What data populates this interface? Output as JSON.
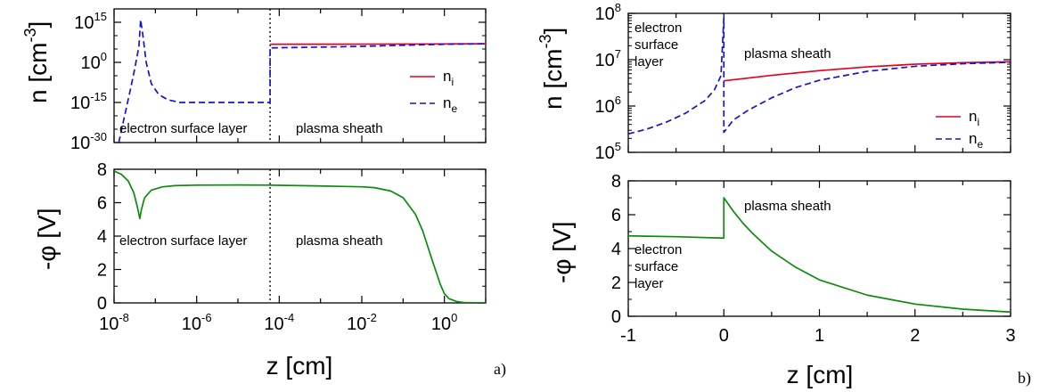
{
  "chart_data": [
    {
      "panel": "a-top",
      "type": "line",
      "xscale": "log",
      "yscale": "log",
      "xlim": [
        1e-08,
        10
      ],
      "ylim": [
        1e-30,
        1e+20
      ],
      "yticks": [
        -30,
        -15,
        0,
        15
      ],
      "ylabel": "n [cm",
      "ylabel_sup": "-3",
      "ylabel_end": "]",
      "legend": {
        "placement": "right",
        "entries": [
          {
            "base": "n",
            "sub": "i",
            "color": "#e8001c",
            "dash": "solid"
          },
          {
            "base": "n",
            "sub": "e",
            "color": "#1414d2",
            "dash": "dashed"
          }
        ]
      },
      "annotations": [
        "electron surface layer",
        "plasma sheath"
      ],
      "divider_x": 6e-05,
      "series": [
        {
          "key": "ni",
          "color": "#e8001c",
          "dash": "solid",
          "x": [
            6e-05,
            0.001,
            0.01,
            0.1,
            1,
            10
          ],
          "y": [
            6000000.0,
            6200000.0,
            6500000.0,
            7000000.0,
            8000000.0,
            9000000.0
          ]
        },
        {
          "key": "ne",
          "color": "#1414d2",
          "dash": "dashed",
          "x": [
            1.3e-08,
            1.8e-08,
            2.5e-08,
            3.2e-08,
            4e-08,
            4.4e-08,
            5e-08,
            6e-08,
            8e-08,
            1.2e-07,
            2e-07,
            4e-07,
            1e-06,
            1e-05,
            6e-05,
            6e-05,
            0.0001,
            0.001,
            0.01,
            0.1,
            1,
            10
          ],
          "y": [
            1e-30,
            1e-20,
            1e-10,
            0.01,
            1000000.0,
            1e+16,
            10000000000.0,
            1.0,
            1e-08,
            1e-12,
            1e-14,
            1e-15,
            1e-15,
            1e-15,
            1e-15,
            250000.0,
            300000.0,
            500000.0,
            1000000.0,
            2500000.0,
            6000000.0,
            9000000.0
          ]
        }
      ]
    },
    {
      "panel": "a-bottom",
      "type": "line",
      "xscale": "log",
      "xlim": [
        1e-08,
        10
      ],
      "ylim": [
        0,
        8
      ],
      "xticks": [
        -8,
        -6,
        -4,
        -2,
        0
      ],
      "yticks": [
        0,
        2,
        4,
        6,
        8
      ],
      "xlabel": "z [cm]",
      "ylabel": "-φ [V]",
      "annotations": [
        "electron surface layer",
        "plasma sheath"
      ],
      "divider_x": 6e-05,
      "series": [
        {
          "key": "phi",
          "color": "#0c8c0c",
          "dash": "solid",
          "x": [
            1e-08,
            1.5e-08,
            2.2e-08,
            3e-08,
            3.7e-08,
            4.2e-08,
            4.6e-08,
            5.5e-08,
            8e-08,
            1.5e-07,
            3e-07,
            1e-06,
            1e-05,
            6e-05,
            0.0001,
            0.001,
            0.01,
            0.02,
            0.05,
            0.1,
            0.2,
            0.3,
            0.5,
            0.8,
            1,
            1.3,
            2,
            3,
            10
          ],
          "y": [
            7.9,
            7.7,
            7.3,
            6.6,
            5.7,
            5.05,
            5.6,
            6.3,
            6.75,
            6.95,
            7.02,
            7.05,
            7.06,
            7.05,
            7.04,
            7.0,
            6.95,
            6.9,
            6.7,
            6.3,
            5.3,
            4.3,
            2.6,
            1.1,
            0.55,
            0.25,
            0.08,
            0.02,
            0.0
          ]
        }
      ]
    },
    {
      "panel": "b-top",
      "type": "line",
      "yscale": "log",
      "xlim": [
        -1,
        3
      ],
      "ylim": [
        100000.0,
        100000000.0
      ],
      "yticks": [
        5,
        6,
        7,
        8
      ],
      "ylabel": "n [cm",
      "ylabel_sup": "-3",
      "ylabel_end": "]",
      "legend": {
        "placement": "right",
        "entries": [
          {
            "base": "n",
            "sub": "i",
            "color": "#e8001c",
            "dash": "solid"
          },
          {
            "base": "n",
            "sub": "e",
            "color": "#1414d2",
            "dash": "dashed"
          }
        ]
      },
      "annotations": [
        "electron",
        "surface",
        "layer",
        "plasma sheath"
      ],
      "series": [
        {
          "key": "ni",
          "color": "#e8001c",
          "dash": "solid",
          "x": [
            0,
            0.25,
            0.5,
            1,
            1.5,
            2,
            2.5,
            3
          ],
          "y": [
            3500000.0,
            4000000.0,
            4600000.0,
            5800000.0,
            7000000.0,
            8000000.0,
            8600000.0,
            9000000.0
          ]
        },
        {
          "key": "ne",
          "color": "#1414d2",
          "dash": "dashed",
          "x": [
            -1,
            -0.8,
            -0.6,
            -0.4,
            -0.2,
            -0.1,
            -0.03,
            0,
            0,
            0.1,
            0.25,
            0.5,
            0.75,
            1,
            1.5,
            2,
            2.5,
            3
          ],
          "y": [
            250000.0,
            320000.0,
            450000.0,
            700000.0,
            1300000.0,
            2200000.0,
            4500000.0,
            80000000.0,
            270000.0,
            500000.0,
            800000.0,
            1500000.0,
            2500000.0,
            3600000.0,
            5600000.0,
            7200000.0,
            8200000.0,
            8800000.0
          ]
        }
      ]
    },
    {
      "panel": "b-bottom",
      "type": "line",
      "xlim": [
        -1,
        3
      ],
      "ylim": [
        0,
        8
      ],
      "xticks": [
        -1,
        0,
        1,
        2,
        3
      ],
      "yticks": [
        0,
        2,
        4,
        6,
        8
      ],
      "xlabel": "z [cm]",
      "ylabel": "-φ [V]",
      "annotations": [
        "plasma sheath",
        "electron",
        "surface",
        "layer"
      ],
      "series": [
        {
          "key": "phi",
          "color": "#0c8c0c",
          "dash": "solid",
          "x": [
            -1,
            -0.5,
            0,
            0,
            0.05,
            0.1,
            0.2,
            0.3,
            0.5,
            0.75,
            1,
            1.5,
            2,
            2.5,
            3
          ],
          "y": [
            4.75,
            4.7,
            4.62,
            7.0,
            6.6,
            6.2,
            5.5,
            4.9,
            3.85,
            2.9,
            2.15,
            1.25,
            0.72,
            0.42,
            0.25
          ]
        }
      ]
    }
  ],
  "labels": {
    "a": "a)",
    "b": "b)"
  }
}
